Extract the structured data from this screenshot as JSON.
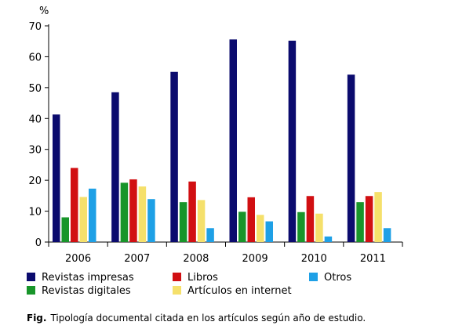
{
  "chart_data": {
    "type": "bar",
    "ylabel": "%",
    "ylim": [
      0,
      70
    ],
    "yticks": [
      0,
      10,
      20,
      30,
      40,
      50,
      60,
      70
    ],
    "grid": false,
    "legend_position": "bottom",
    "categories": [
      "2006",
      "2007",
      "2008",
      "2009",
      "2010",
      "2011"
    ],
    "series": [
      {
        "name": "Revistas impresas",
        "color": "#0b0b6e",
        "values": [
          41.3,
          48.5,
          55.1,
          65.6,
          65.2,
          54.2
        ]
      },
      {
        "name": "Revistas digitales",
        "color": "#18952a",
        "values": [
          8.0,
          19.2,
          12.9,
          9.8,
          9.7,
          12.9
        ]
      },
      {
        "name": "Libros",
        "color": "#d10f12",
        "values": [
          24.0,
          20.3,
          19.6,
          14.5,
          14.9,
          14.9
        ]
      },
      {
        "name": "Artículos en internet",
        "color": "#f5e06b",
        "values": [
          14.6,
          18.0,
          13.6,
          8.8,
          9.2,
          16.2
        ]
      },
      {
        "name": "Otros",
        "color": "#1ea0e6",
        "values": [
          17.3,
          13.9,
          4.5,
          6.7,
          1.8,
          4.5
        ]
      }
    ]
  },
  "caption": {
    "label": "Fig.",
    "text": "Tipología documental citada en los artículos según año de estudio."
  }
}
